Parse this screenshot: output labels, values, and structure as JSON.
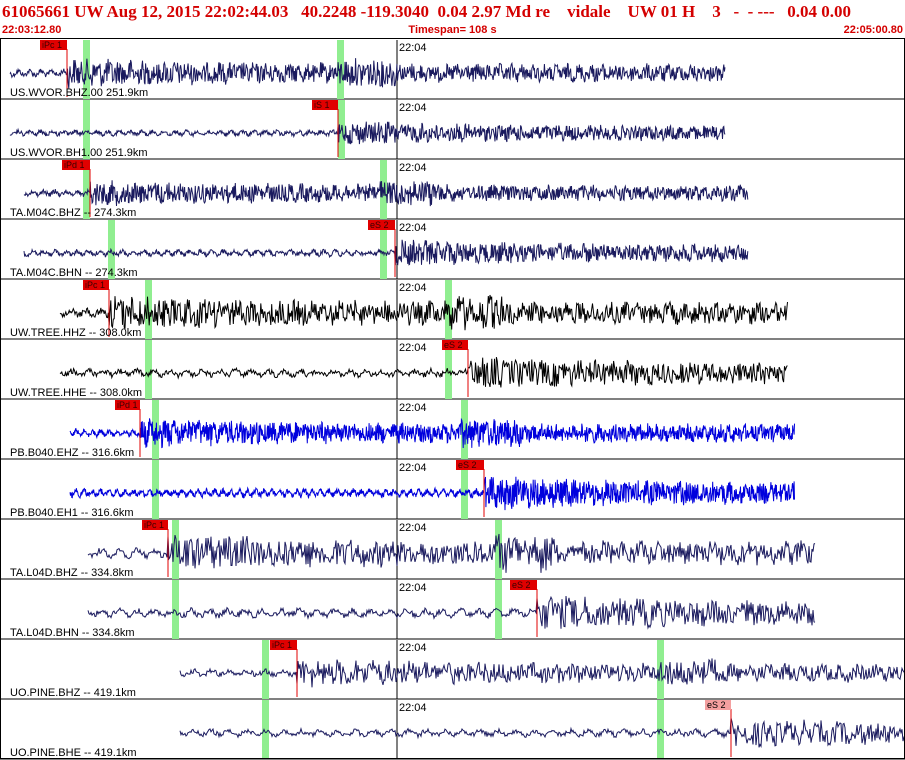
{
  "header": {
    "title": "61065661 UW Aug 12, 2015 22:02:44.03   40.2248 -119.3040  0.04 2.97 Md re    vidale    UW 01 H    3   -  - ---   0.04 0.00",
    "start_time": "22:03:12.80",
    "timespan": "Timespan= 108 s",
    "end_time": "22:05:00.80"
  },
  "time_tick": "22:04",
  "colors": {
    "header_text": "#d40000",
    "trace_dark": "#1a1a5e",
    "trace_black": "#000000",
    "trace_blue": "#0000dd",
    "pick_flag": "#e00000",
    "pick_flag_light": "#f4a0a0",
    "window_green": "#90ee90"
  },
  "channels": [
    {
      "label": "US.WVOR.BHZ.00  251.9km",
      "pick": "iPc 1",
      "color": "dark",
      "amp": 0.45,
      "freq": 1.6
    },
    {
      "label": "US.WVOR.BH1.00  251.9km",
      "pick": "iS 1",
      "color": "dark",
      "amp": 0.35,
      "freq": 1.6
    },
    {
      "label": "TA.M04C.BHZ --  274.3km",
      "pick": "iPd 1",
      "color": "dark",
      "amp": 0.4,
      "freq": 1.6
    },
    {
      "label": "TA.M04C.BHN --  274.3km",
      "pick": "eS 2",
      "color": "dark",
      "amp": 0.4,
      "freq": 1.6
    },
    {
      "label": "UW.TREE.HHZ --  308.0km",
      "pick": "iPc 1",
      "color": "black",
      "amp": 0.55,
      "freq": 1.2
    },
    {
      "label": "UW.TREE.HHE --  308.0km",
      "pick": "eS 2",
      "color": "black",
      "amp": 0.5,
      "freq": 1.1
    },
    {
      "label": "PB.B040.EHZ --  316.6km",
      "pick": "iPd 1",
      "color": "blue",
      "amp": 0.45,
      "freq": 2.2
    },
    {
      "label": "PB.B040.EH1 --  316.6km",
      "pick": "eS 2",
      "color": "blue",
      "amp": 0.5,
      "freq": 2.2
    },
    {
      "label": "TA.L04D.BHZ --  334.8km",
      "pick": "iPc 1",
      "color": "dark",
      "amp": 0.6,
      "freq": 1.0
    },
    {
      "label": "TA.L04D.BHN --  334.8km",
      "pick": "eS 2",
      "color": "dark",
      "amp": 0.55,
      "freq": 1.0
    },
    {
      "label": "UO.PINE.BHZ --  419.1km",
      "pick": "iPc 1",
      "color": "dark",
      "amp": 0.45,
      "freq": 1.0
    },
    {
      "label": "UO.PINE.BHE --  419.1km",
      "pick": "eS 2",
      "color": "dark",
      "amp": 0.45,
      "freq": 1.0
    }
  ]
}
